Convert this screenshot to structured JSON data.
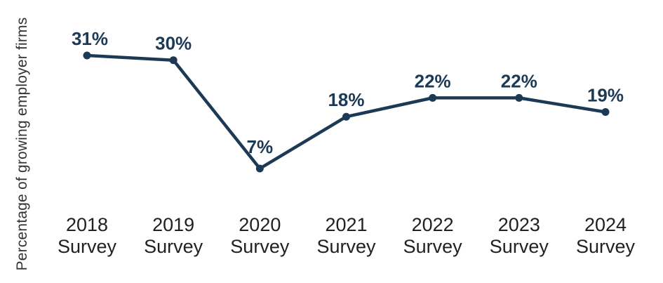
{
  "chart_data": {
    "type": "line",
    "title": "",
    "ylabel": "Percentage of growing employer firms",
    "xlabel": "",
    "categories": [
      "2018 Survey",
      "2019 Survey",
      "2020 Survey",
      "2021 Survey",
      "2022 Survey",
      "2023 Survey",
      "2024 Survey"
    ],
    "values": [
      31,
      30,
      7,
      18,
      22,
      22,
      19
    ],
    "value_labels": [
      "31%",
      "30%",
      "7%",
      "18%",
      "22%",
      "22%",
      "19%"
    ],
    "ylim": [
      0,
      35
    ],
    "grid": false,
    "legend_position": "none",
    "line_color": "#1c3a56",
    "marker_color": "#1c3a56",
    "value_label_color": "#1c3a56",
    "axis_text_color": "#212121",
    "ylabel_color": "#333333",
    "background_color": "#ffffff"
  }
}
